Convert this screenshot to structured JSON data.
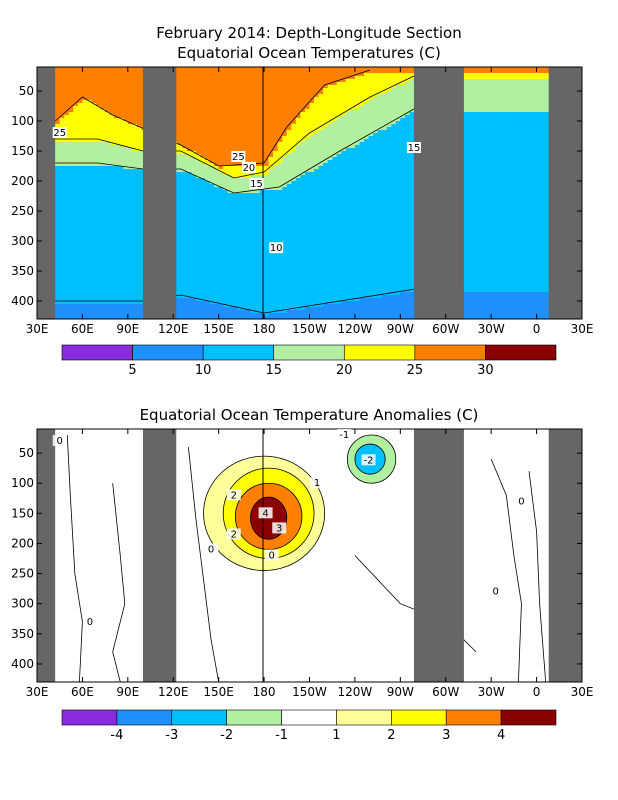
{
  "chart_data": [
    {
      "type": "heatmap",
      "title": "February 2014: Depth-Longitude Section",
      "subtitle": "Equatorial Ocean Temperatures (C)",
      "xticks": [
        "30E",
        "60E",
        "90E",
        "120E",
        "150E",
        "180",
        "150W",
        "120W",
        "90W",
        "60W",
        "30W",
        "0",
        "30E"
      ],
      "yticks": [
        "50",
        "100",
        "150",
        "200",
        "250",
        "300",
        "350",
        "400"
      ],
      "xlim": [
        "30E",
        "30E"
      ],
      "ylim": [
        430,
        10
      ],
      "land_masks": [
        [
          "30E",
          "42E"
        ],
        [
          "100E",
          "122E"
        ],
        [
          "81W",
          "48W"
        ],
        [
          "8E",
          "30E"
        ]
      ],
      "colorbar_ticks": [
        "5",
        "10",
        "15",
        "20",
        "25",
        "30"
      ],
      "colorbar_levels": [
        0,
        5,
        10,
        15,
        20,
        25,
        30,
        35
      ],
      "colors": [
        "#8a2be2",
        "#1e90ff",
        "#00bfff",
        "#b0f0a0",
        "#ffff00",
        "#ff8000",
        "#8b0000"
      ],
      "layers": [
        {
          "range": "> 25",
          "color": "#ff8000",
          "depth_by_lon": [
            [
              42,
              100
            ],
            [
              60,
              60
            ],
            [
              80,
              90
            ],
            [
              125,
              140
            ],
            [
              150,
              175
            ],
            [
              180,
              170
            ],
            [
              195,
              110
            ],
            [
              220,
              40
            ],
            [
              250,
              15
            ]
          ]
        },
        {
          "range": "20-25",
          "color": "#ffff00",
          "depth_by_lon": [
            [
              42,
              130
            ],
            [
              70,
              130
            ],
            [
              100,
              150
            ],
            [
              125,
              150
            ],
            [
              160,
              195
            ],
            [
              180,
              185
            ],
            [
              210,
              120
            ],
            [
              250,
              60
            ],
            [
              279,
              25
            ]
          ]
        },
        {
          "range": "15-20",
          "color": "#b0f0a0",
          "depth_by_lon": [
            [
              42,
              170
            ],
            [
              70,
              170
            ],
            [
              100,
              180
            ],
            [
              125,
              180
            ],
            [
              160,
              220
            ],
            [
              190,
              210
            ],
            [
              230,
              150
            ],
            [
              279,
              80
            ]
          ]
        },
        {
          "range": "10-15",
          "color": "#00bfff",
          "depth_by_lon": [
            [
              42,
              400
            ],
            [
              100,
              400
            ],
            [
              125,
              390
            ],
            [
              180,
              420
            ],
            [
              280,
              380
            ]
          ]
        }
      ],
      "contour_labels": [
        "25",
        "25",
        "20",
        "15",
        "15",
        "10"
      ]
    },
    {
      "type": "heatmap",
      "title": "Equatorial Ocean Temperature Anomalies (C)",
      "xticks": [
        "30E",
        "60E",
        "90E",
        "120E",
        "150E",
        "180",
        "150W",
        "120W",
        "90W",
        "60W",
        "30W",
        "0",
        "30E"
      ],
      "yticks": [
        "50",
        "100",
        "150",
        "200",
        "250",
        "300",
        "350",
        "400"
      ],
      "xlim": [
        "30E",
        "30E"
      ],
      "ylim": [
        430,
        10
      ],
      "land_masks": [
        [
          "30E",
          "42E"
        ],
        [
          "100E",
          "122E"
        ],
        [
          "81W",
          "48W"
        ],
        [
          "8E",
          "30E"
        ]
      ],
      "colorbar_ticks": [
        "-4",
        "-3",
        "-2",
        "-1",
        "1",
        "2",
        "3",
        "4"
      ],
      "colorbar_levels": [
        -5,
        -4,
        -3,
        -2,
        -1,
        1,
        2,
        3,
        4,
        5
      ],
      "colors": [
        "#8a2be2",
        "#1e90ff",
        "#00bfff",
        "#b0f0a0",
        "#ffffff",
        "#ffff99",
        "#ffff00",
        "#ff8000",
        "#8b0000"
      ],
      "anomalies": [
        {
          "level": 1,
          "color": "#ffff99",
          "center": [
            180,
            150
          ],
          "extent": [
            40,
            95
          ]
        },
        {
          "level": 2,
          "color": "#ffff00",
          "center": [
            183,
            150
          ],
          "extent": [
            30,
            75
          ]
        },
        {
          "level": 3,
          "color": "#ff8000",
          "center": [
            183,
            155
          ],
          "extent": [
            22,
            55
          ]
        },
        {
          "level": 4,
          "color": "#8b0000",
          "center": [
            183,
            158
          ],
          "extent": [
            12,
            35
          ]
        },
        {
          "level": -1,
          "color": "#b0f0a0",
          "center": [
            251,
            60
          ],
          "extent": [
            16,
            40
          ]
        },
        {
          "level": -2,
          "color": "#00bfff",
          "center": [
            250,
            60
          ],
          "extent": [
            10,
            25
          ]
        }
      ],
      "contour_labels": [
        "-1",
        "-2",
        "2",
        "4",
        "3",
        "2",
        "1",
        "0",
        "0",
        "0",
        "0",
        "0",
        "0"
      ]
    }
  ]
}
